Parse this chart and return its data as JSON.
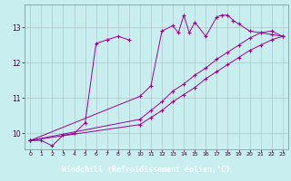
{
  "xlabel": "Windchill (Refroidissement éolien,°C)",
  "bg_color": "#c8eef0",
  "grid_color": "#b0c8c8",
  "line_color": "#990099",
  "xlabel_bg": "#7700aa",
  "xlim": [
    -0.5,
    23.5
  ],
  "ylim": [
    9.55,
    13.65
  ],
  "yticks": [
    10,
    11,
    12,
    13
  ],
  "xticks": [
    0,
    1,
    2,
    3,
    4,
    5,
    6,
    7,
    8,
    9,
    10,
    11,
    12,
    13,
    14,
    15,
    16,
    17,
    18,
    19,
    20,
    21,
    22,
    23
  ],
  "series": [
    [
      0,
      9.8,
      1,
      9.8,
      2,
      9.65,
      3,
      9.95,
      4,
      10.0,
      5,
      10.3,
      6,
      12.55,
      7,
      12.65,
      8,
      12.75,
      9,
      12.65
    ],
    [
      0,
      9.8,
      10,
      11.05,
      11,
      11.35,
      12,
      12.9,
      13,
      13.05,
      13.5,
      12.85,
      14,
      13.35,
      14.5,
      12.85,
      15,
      13.15,
      16,
      12.75,
      17,
      13.3,
      17.5,
      13.35,
      18,
      13.35,
      18.5,
      13.2,
      19,
      13.1,
      20,
      12.9,
      21,
      12.85,
      22,
      12.8,
      23,
      12.75
    ],
    [
      0,
      9.8,
      10,
      10.4,
      11,
      10.65,
      12,
      10.9,
      13,
      11.2,
      14,
      11.4,
      15,
      11.65,
      16,
      11.85,
      17,
      12.1,
      18,
      12.3,
      19,
      12.5,
      20,
      12.7,
      21,
      12.85,
      22,
      12.9,
      23,
      12.75
    ],
    [
      0,
      9.8,
      10,
      10.25,
      11,
      10.45,
      12,
      10.65,
      13,
      10.9,
      14,
      11.1,
      15,
      11.3,
      16,
      11.55,
      17,
      11.75,
      18,
      11.95,
      19,
      12.15,
      20,
      12.35,
      21,
      12.5,
      22,
      12.65,
      23,
      12.75
    ]
  ]
}
